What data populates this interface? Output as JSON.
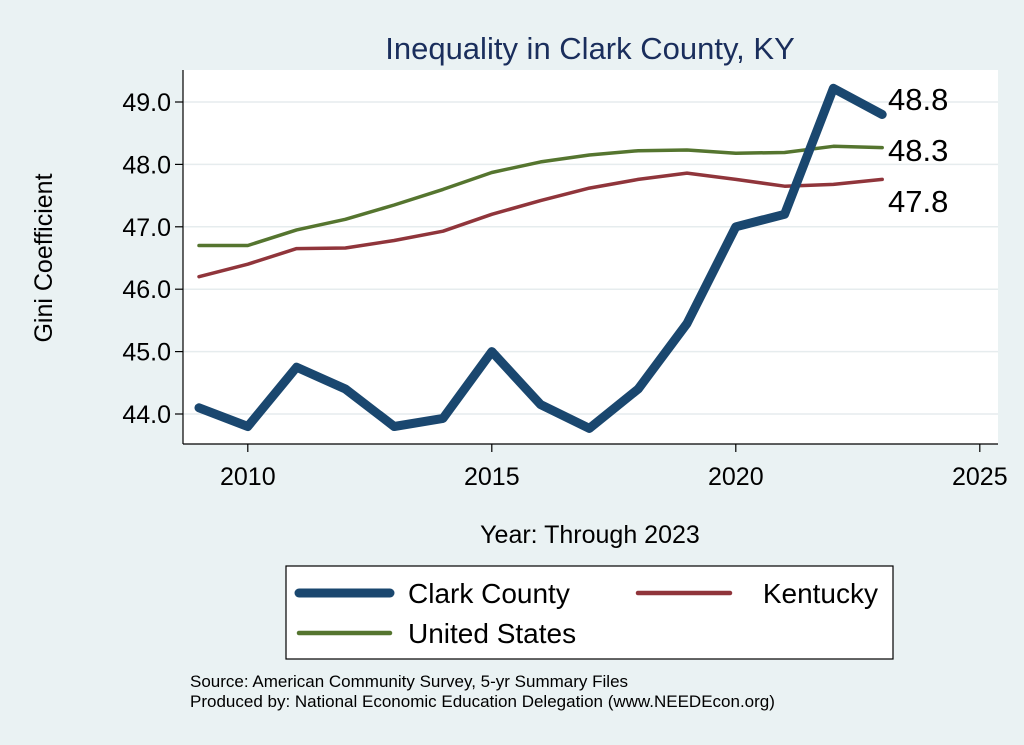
{
  "chart_data": {
    "type": "line",
    "title": "Inequality in Clark County, KY",
    "xlabel": "Year: Through 2023",
    "ylabel": "Gini Coefficient",
    "xlim": [
      2009,
      2025.5
    ],
    "ylim": [
      43.55,
      49.45
    ],
    "x_ticks": [
      2010,
      2015,
      2020,
      2025
    ],
    "y_ticks": [
      44.0,
      45.0,
      46.0,
      47.0,
      48.0,
      49.0
    ],
    "grid": true,
    "legend_position": "bottom",
    "x": [
      2009,
      2010,
      2011,
      2012,
      2013,
      2014,
      2015,
      2016,
      2017,
      2018,
      2019,
      2020,
      2021,
      2022,
      2023
    ],
    "series": [
      {
        "name": "Clark County",
        "color": "#1a476f",
        "end_label": "48.8",
        "values": [
          44.1,
          43.8,
          44.75,
          44.4,
          43.8,
          43.93,
          45.0,
          44.15,
          43.77,
          44.4,
          45.45,
          47.0,
          47.2,
          49.22,
          48.8
        ]
      },
      {
        "name": "Kentucky",
        "color": "#90353b",
        "end_label": "47.8",
        "values": [
          46.2,
          46.4,
          46.65,
          46.66,
          46.78,
          46.93,
          47.2,
          47.42,
          47.62,
          47.76,
          47.86,
          47.76,
          47.65,
          47.68,
          47.76
        ]
      },
      {
        "name": "United States",
        "color": "#55752f",
        "end_label": "48.3",
        "values": [
          46.7,
          46.7,
          46.95,
          47.12,
          47.35,
          47.6,
          47.87,
          48.04,
          48.15,
          48.22,
          48.23,
          48.18,
          48.19,
          48.29,
          48.27
        ]
      }
    ],
    "notes": [
      "Source: American Community Survey, 5-yr Summary Files",
      "Produced by: National Economic Education Delegation (www.NEEDEcon.org)"
    ]
  }
}
